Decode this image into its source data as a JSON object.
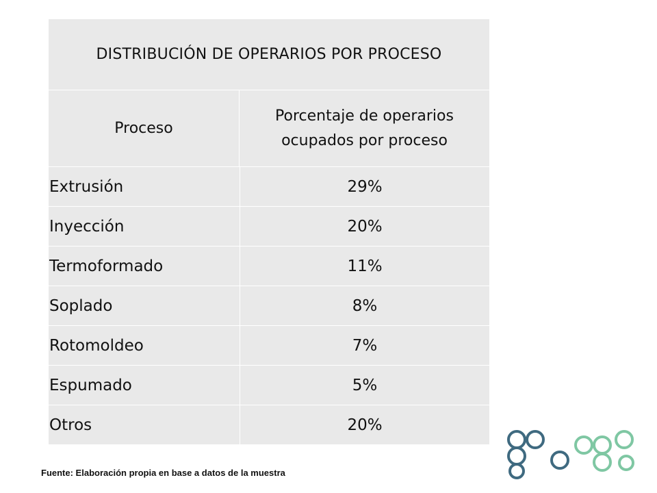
{
  "table": {
    "title": "DISTRIBUCIÓN DE OPERARIOS POR PROCESO",
    "headers": [
      "Proceso",
      "Porcentaje de operarios ocupados por proceso"
    ],
    "rows": [
      {
        "process": "Extrusión",
        "percent": "29%"
      },
      {
        "process": "Inyección",
        "percent": "20%"
      },
      {
        "process": "Termoformado",
        "percent": "11%"
      },
      {
        "process": "Soplado",
        "percent": "8%"
      },
      {
        "process": "Rotomoldeo",
        "percent": "7%"
      },
      {
        "process": "Espumado",
        "percent": "5%"
      },
      {
        "process": "Otros",
        "percent": "20%"
      }
    ]
  },
  "source": "Fuente: Elaboración propia en base a datos de la muestra",
  "logo": {
    "icon": "interlocking-circles-logo",
    "colors": [
      "#3f6a80",
      "#3f6a80",
      "#7fc7a3",
      "#7fc7a3"
    ]
  }
}
